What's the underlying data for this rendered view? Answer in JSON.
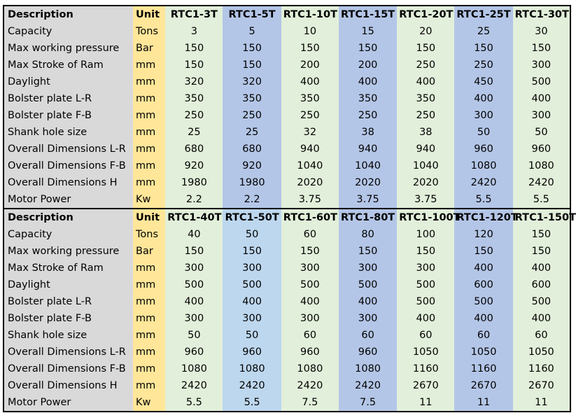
{
  "tables": [
    {
      "header": {
        "description": "Description",
        "unit": "Unit",
        "models": [
          "RTC1-3T",
          "RTC1-5T",
          "RTC1-10T",
          "RTC1-15T",
          "RTC1-20T",
          "RTC1-25T",
          "RTC1-30T"
        ]
      },
      "rows": [
        {
          "label": "Capacity",
          "unit": "Tons",
          "values": [
            "3",
            "5",
            "10",
            "15",
            "20",
            "25",
            "30"
          ]
        },
        {
          "label": "Max working pressure",
          "unit": "Bar",
          "values": [
            "150",
            "150",
            "150",
            "150",
            "150",
            "150",
            "150"
          ]
        },
        {
          "label": "Max Stroke of Ram",
          "unit": "mm",
          "values": [
            "150",
            "150",
            "200",
            "200",
            "250",
            "250",
            "300"
          ]
        },
        {
          "label": "Daylight",
          "unit": "mm",
          "values": [
            "320",
            "320",
            "400",
            "400",
            "400",
            "450",
            "500"
          ]
        },
        {
          "label": "Bolster plate L-R",
          "unit": "mm",
          "values": [
            "350",
            "350",
            "350",
            "350",
            "350",
            "400",
            "400"
          ]
        },
        {
          "label": "Bolster plate F-B",
          "unit": "mm",
          "values": [
            "250",
            "250",
            "250",
            "250",
            "250",
            "300",
            "300"
          ]
        },
        {
          "label": "Shank hole size",
          "unit": "mm",
          "values": [
            "25",
            "25",
            "32",
            "38",
            "38",
            "50",
            "50"
          ]
        },
        {
          "label": "Overall Dimensions L-R",
          "unit": "mm",
          "values": [
            "680",
            "680",
            "940",
            "940",
            "940",
            "960",
            "960"
          ]
        },
        {
          "label": "Overall Dimensions F-B",
          "unit": "mm",
          "values": [
            "920",
            "920",
            "1040",
            "1040",
            "1040",
            "1080",
            "1080"
          ]
        },
        {
          "label": "Overall Dimensions H",
          "unit": "mm",
          "values": [
            "1980",
            "1980",
            "2020",
            "2020",
            "2020",
            "2420",
            "2420"
          ]
        },
        {
          "label": "Motor Power",
          "unit": "Kw",
          "values": [
            "2.2",
            "2.2",
            "3.75",
            "3.75",
            "3.75",
            "5.5",
            "5.5"
          ]
        }
      ],
      "column_colors": [
        "#e2efda",
        "#b4c6e7",
        "#e2efda",
        "#b4c6e7",
        "#e2efda",
        "#b4c6e7",
        "#e2efda"
      ]
    },
    {
      "header": {
        "description": "Description",
        "unit": "Unit",
        "models": [
          "RTC1-40T",
          "RTC1-50T",
          "RTC1-60T",
          "RTC1-80T",
          "RTC1-100T",
          "RTC1-120T",
          "RTC1-150T"
        ]
      },
      "rows": [
        {
          "label": "Capacity",
          "unit": "Tons",
          "values": [
            "40",
            "50",
            "60",
            "80",
            "100",
            "120",
            "150"
          ]
        },
        {
          "label": "Max working pressure",
          "unit": "Bar",
          "values": [
            "150",
            "150",
            "150",
            "150",
            "150",
            "150",
            "150"
          ]
        },
        {
          "label": "Max Stroke of Ram",
          "unit": "mm",
          "values": [
            "300",
            "300",
            "300",
            "300",
            "300",
            "400",
            "400"
          ]
        },
        {
          "label": "Daylight",
          "unit": "mm",
          "values": [
            "500",
            "500",
            "500",
            "500",
            "500",
            "600",
            "600"
          ]
        },
        {
          "label": "Bolster plate L-R",
          "unit": "mm",
          "values": [
            "400",
            "400",
            "400",
            "400",
            "500",
            "500",
            "500"
          ]
        },
        {
          "label": "Bolster plate F-B",
          "unit": "mm",
          "values": [
            "300",
            "300",
            "300",
            "300",
            "400",
            "400",
            "400"
          ]
        },
        {
          "label": "Shank hole size",
          "unit": "mm",
          "values": [
            "50",
            "50",
            "60",
            "60",
            "60",
            "60",
            "60"
          ]
        },
        {
          "label": "Overall Dimensions L-R",
          "unit": "mm",
          "values": [
            "960",
            "960",
            "960",
            "960",
            "1050",
            "1050",
            "1050"
          ]
        },
        {
          "label": "Overall Dimensions F-B",
          "unit": "mm",
          "values": [
            "1080",
            "1080",
            "1080",
            "1080",
            "1160",
            "1160",
            "1160"
          ]
        },
        {
          "label": "Overall Dimensions H",
          "unit": "mm",
          "values": [
            "2420",
            "2420",
            "2420",
            "2420",
            "2670",
            "2670",
            "2670"
          ]
        },
        {
          "label": "Motor Power",
          "unit": "Kw",
          "values": [
            "5.5",
            "5.5",
            "7.5",
            "7.5",
            "11",
            "11",
            "11"
          ]
        }
      ],
      "column_colors": [
        "#e2efda",
        "#bdd7ee",
        "#e2efda",
        "#b4c6e7",
        "#e2efda",
        "#b4c6e7",
        "#e2efda"
      ]
    }
  ]
}
